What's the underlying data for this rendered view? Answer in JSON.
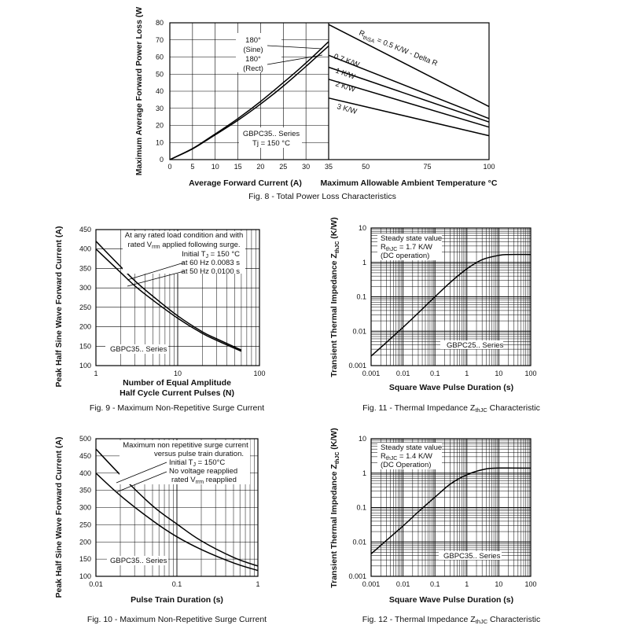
{
  "colors": {
    "ink": "#000000",
    "grid": "#000000",
    "background": "#ffffff"
  },
  "chart_data": [
    {
      "id": "fig8",
      "type": "line",
      "title": "Fig. 8 - Total Power Loss Characteristics",
      "panels": [
        {
          "xlabel": "Average Forward Current (A)",
          "ylabel": "Maximum Average Forward Power Loss (W",
          "xlim": [
            0,
            35
          ],
          "ylim": [
            0,
            80
          ],
          "xticks": [
            0,
            5,
            10,
            15,
            20,
            25,
            30,
            35
          ],
          "yticks": [
            0,
            10,
            20,
            30,
            40,
            50,
            60,
            70,
            80
          ],
          "grid": true,
          "series": [
            {
              "name": "180° (Sine)",
              "x": [
                0,
                5,
                10,
                15,
                20,
                25,
                30,
                35
              ],
              "y": [
                0,
                6.5,
                15,
                24,
                34,
                45,
                56.5,
                69
              ]
            },
            {
              "name": "180° (Rect)",
              "x": [
                0,
                5,
                10,
                15,
                20,
                25,
                30,
                35
              ],
              "y": [
                0,
                6.3,
                14.5,
                23,
                32.5,
                43,
                54.5,
                66.5
              ]
            }
          ],
          "annotations": {
            "sine_top": "180°",
            "sine_bottom": "(Sine)",
            "rect_top": "180°",
            "rect_bottom": "(Rect)",
            "series_label": "GBPC35.. Series",
            "tj_label": "Tj = 150 °C"
          }
        },
        {
          "xlabel": "Maximum Allowable Ambient Temperature °C",
          "xlim": [
            35,
            100
          ],
          "ylim": [
            0,
            80
          ],
          "xticks": [
            35,
            50,
            75,
            100
          ],
          "grid": false,
          "series": [
            {
              "name": "RthSA = 0.5 K/W - Delta R",
              "x": [
                35,
                100
              ],
              "y": [
                79,
                31
              ]
            },
            {
              "name": "0.7 K/W",
              "x": [
                35,
                100
              ],
              "y": [
                61,
                24
              ]
            },
            {
              "name": "1 K/W",
              "x": [
                35,
                100
              ],
              "y": [
                54,
                22
              ]
            },
            {
              "name": "2 K/W",
              "x": [
                35,
                100
              ],
              "y": [
                47,
                19
              ]
            },
            {
              "name": "3 K/W",
              "x": [
                35,
                100
              ],
              "y": [
                36,
                14
              ]
            }
          ],
          "curve_labels": {
            "r05_main": "R",
            "r05_sub": "thSA",
            "r05_rest": " = 0.5 K/W - Delta R",
            "r07": "0.7 K/W",
            "r1": "1 K/W",
            "r2": "2 K/W",
            "r3": "3 K/W"
          }
        }
      ]
    },
    {
      "id": "fig9",
      "type": "line",
      "title": "Fig. 9 - Maximum Non-Repetitive Surge Current",
      "xlabel": "Number of Equal Amplitude",
      "xlabel2": "Half Cycle Current Pulses (N)",
      "ylabel": "Peak Half Sine Wave Forward Current (A)",
      "xscale": "log",
      "xlim": [
        1,
        100
      ],
      "ylim": [
        100,
        450
      ],
      "xticks": [
        1,
        10,
        100
      ],
      "yticks": [
        100,
        150,
        200,
        250,
        300,
        350,
        400,
        450
      ],
      "grid": true,
      "series": [
        {
          "name": "at 60 Hz 0.0083 s",
          "x": [
            1,
            2,
            3,
            5,
            10,
            20,
            30,
            60
          ],
          "y": [
            420,
            355,
            318,
            278,
            228,
            187,
            169,
            140
          ]
        },
        {
          "name": "at 50 Hz 0.0100 s",
          "x": [
            1,
            2,
            3,
            5,
            10,
            20,
            30,
            60
          ],
          "y": [
            400,
            340,
            305,
            268,
            222,
            183,
            165,
            137
          ]
        }
      ],
      "annotations": {
        "line1": "At any rated load condition and with",
        "line2a": "rated V",
        "line2sub": "rrm",
        "line2b": " applied following surge.",
        "line3a": "Initial T",
        "line3sub": "J",
        "line3b": " = 150 °C",
        "line4": "at 60 Hz 0.0083 s",
        "line5": "at 50 Hz 0.0100 s",
        "series_label": "GBPC35.. Series"
      }
    },
    {
      "id": "fig11",
      "type": "line",
      "title": "Fig. 11 - Thermal Impedance ZthJC Characteristic",
      "title_main": "Fig. 11 - Thermal Impedance Z",
      "title_sub": "thJC",
      "title_rest": " Characteristic",
      "xlabel": "Square Wave Pulse Duration (s)",
      "ylabel": "Transient Thermal Impedance ZthJC (K/W)",
      "ylabel_main": "Transient Thermal Impedance Z",
      "ylabel_sub": "thJC",
      "ylabel_rest": " (K/W)",
      "xscale": "log",
      "yscale": "log",
      "xlim": [
        0.001,
        100
      ],
      "ylim": [
        0.001,
        10
      ],
      "xticks": [
        0.001,
        0.01,
        0.1,
        1,
        10,
        100
      ],
      "xticklabels": [
        "0.001",
        "0.01",
        "0.1",
        "1",
        "10",
        "100"
      ],
      "yticks": [
        0.001,
        0.01,
        0.1,
        1,
        10
      ],
      "yticklabels": [
        "0.001",
        "0.01",
        "0.1",
        "1",
        "10"
      ],
      "grid": true,
      "series": [
        {
          "name": "GBPC25.. Series",
          "x": [
            0.001,
            0.003,
            0.01,
            0.03,
            0.1,
            0.3,
            1,
            3,
            10,
            20,
            100
          ],
          "y": [
            0.0019,
            0.0047,
            0.013,
            0.034,
            0.1,
            0.26,
            0.65,
            1.2,
            1.6,
            1.7,
            1.7
          ]
        }
      ],
      "annotations": {
        "line1": "Steady state value",
        "line2a": "R",
        "line2sub": "thJC",
        "line2b": " = 1.7 K/W",
        "line3": "(DC operation)",
        "series_label": "GBPC25.. Series"
      }
    },
    {
      "id": "fig10",
      "type": "line",
      "title": "Fig. 10 - Maximum Non-Repetitive Surge Current",
      "xlabel": "Pulse Train Duration (s)",
      "ylabel": "Peak Half Sine Wave Forward Current (A)",
      "xscale": "log",
      "xlim": [
        0.01,
        1
      ],
      "ylim": [
        100,
        500
      ],
      "xticks": [
        0.01,
        0.1,
        1
      ],
      "xticklabels": [
        "0.01",
        "0.1",
        "1"
      ],
      "yticks": [
        100,
        150,
        200,
        250,
        300,
        350,
        400,
        450,
        500
      ],
      "grid": true,
      "series": [
        {
          "name": "Initial TJ = 150°C",
          "x": [
            0.01,
            0.02,
            0.05,
            0.1,
            0.2,
            0.5,
            1
          ],
          "y": [
            470,
            395,
            305,
            252,
            203,
            155,
            130
          ]
        },
        {
          "name": "No voltage reapplied",
          "x": [
            0.01,
            0.02,
            0.05,
            0.1,
            0.2,
            0.5,
            1
          ],
          "y": [
            400,
            335,
            262,
            215,
            178,
            139,
            117
          ]
        }
      ],
      "annotations": {
        "line1": "Maximum non repetitive surge current",
        "line2": "versus pulse train duration.",
        "line3a": "Initial T",
        "line3sub": "J",
        "line3b": " = 150°C",
        "line4": "No voltage reapplied",
        "line5a": "rated V",
        "line5sub": "rrm",
        "line5b": " reapplied",
        "series_label": "GBPC35.. Series"
      }
    },
    {
      "id": "fig12",
      "type": "line",
      "title": "Fig. 12 - Thermal Impedance ZthJC Characteristic",
      "title_main": "Fig. 12 - Thermal Impedance Z",
      "title_sub": "thJC",
      "title_rest": " Characteristic",
      "xlabel": "Square Wave Pulse Duration (s)",
      "ylabel": "Transient Thermal Impedance ZthJC (K/W)",
      "ylabel_main": "Transient Thermal Impedance Z",
      "ylabel_sub": "thJC",
      "ylabel_rest": " (K/W)",
      "xscale": "log",
      "yscale": "log",
      "xlim": [
        0.001,
        100
      ],
      "ylim": [
        0.001,
        10
      ],
      "xticks": [
        0.001,
        0.01,
        0.1,
        1,
        10,
        100
      ],
      "xticklabels": [
        "0.001",
        "0.01",
        "0.1",
        "1",
        "10",
        "100"
      ],
      "yticks": [
        0.001,
        0.01,
        0.1,
        1,
        10
      ],
      "yticklabels": [
        "0.001",
        "0.01",
        "0.1",
        "1",
        "10"
      ],
      "grid": true,
      "series": [
        {
          "name": "GBPC35.. Series",
          "x": [
            0.001,
            0.003,
            0.01,
            0.03,
            0.1,
            0.3,
            1,
            3,
            8,
            100
          ],
          "y": [
            0.0045,
            0.011,
            0.029,
            0.075,
            0.2,
            0.48,
            0.9,
            1.25,
            1.4,
            1.4
          ]
        }
      ],
      "annotations": {
        "line1": "Steady state value",
        "line2a": "R",
        "line2sub": "thJC",
        "line2b": " = 1.4 K/W",
        "line3": "(DC Operation)",
        "series_label": "GBPC35.. Series"
      }
    }
  ]
}
